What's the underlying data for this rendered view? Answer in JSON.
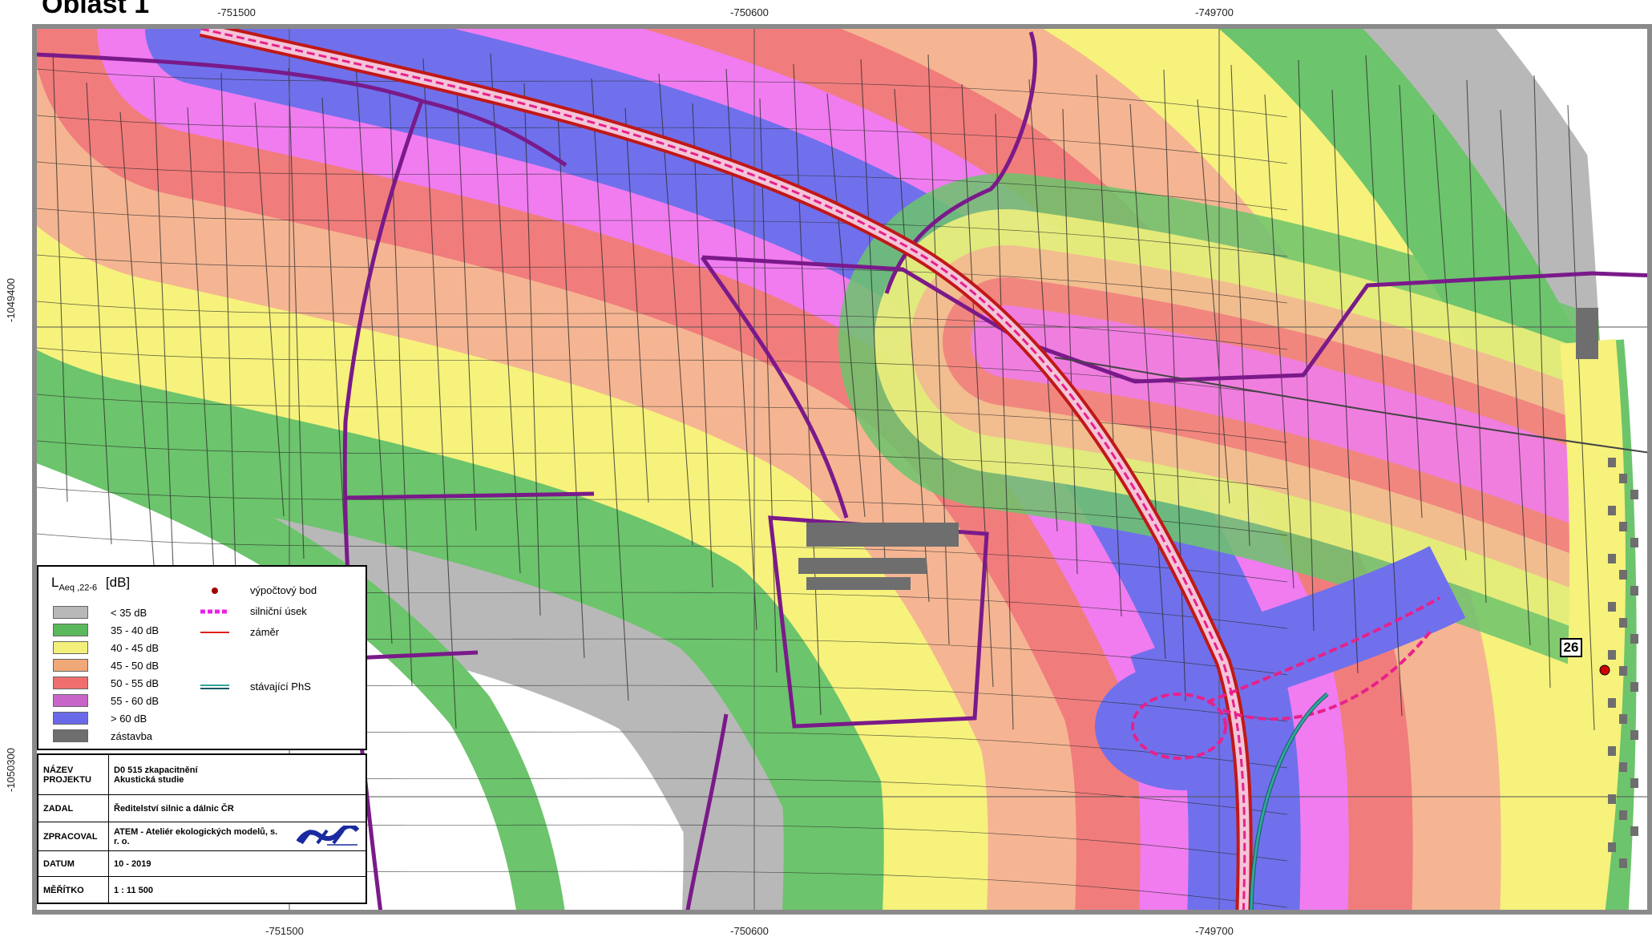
{
  "map": {
    "title": "Oblast 1",
    "coords_x": [
      "-751500",
      "-750600",
      "-749700"
    ],
    "coords_y": [
      "-1049400",
      "-1050300"
    ]
  },
  "legend": {
    "title_main": "L",
    "title_sub": "Aeq ,22-6",
    "title_unit": "[dB]",
    "classes": [
      {
        "label": "< 35 dB",
        "color": "#b8b8b8"
      },
      {
        "label": "35 - 40 dB",
        "color": "#5cb85c"
      },
      {
        "label": "40 - 45 dB",
        "color": "#f2f07a"
      },
      {
        "label": "45 - 50 dB",
        "color": "#f0a878"
      },
      {
        "label": "50 - 55 dB",
        "color": "#ef6f6f"
      },
      {
        "label": "55 - 60 dB",
        "color": "#c865c8"
      },
      {
        "label": "> 60 dB",
        "color": "#6a6ae8"
      },
      {
        "label": "zástavba",
        "color": "#6e6e6e"
      }
    ],
    "symbols": {
      "point": "výpočtový bod",
      "road_section": "silniční úsek",
      "intent": "záměr",
      "existing_barrier": "stávající PhS"
    }
  },
  "title_block": {
    "project_key": "NÁZEV PROJEKTU",
    "project_line1": "D0 515 zkapacitnění",
    "project_line2": "Akustická studie",
    "client_key": "ZADAL",
    "client": "Ředitelství silnic a dálnic ČR",
    "author_key": "ZPRACOVAL",
    "author": "ATEM - Ateliér ekologických modelů, s. r. o.",
    "date_key": "DATUM",
    "date": "10 - 2019",
    "scale_key": "MĚŘÍTKO",
    "scale": "1 : 11 500"
  },
  "calc_point": {
    "label": "26"
  },
  "colors": {
    "z35": "#b8b8b8",
    "z40": "#6cc46c",
    "z45": "#f6f27c",
    "z50": "#f5b592",
    "z55": "#f17c7c",
    "z60": "#f07cf0",
    "zmax": "#7070ec",
    "boundary": "#7a1a8a",
    "road": "#e8208a",
    "barrier": "#2ea89a"
  }
}
